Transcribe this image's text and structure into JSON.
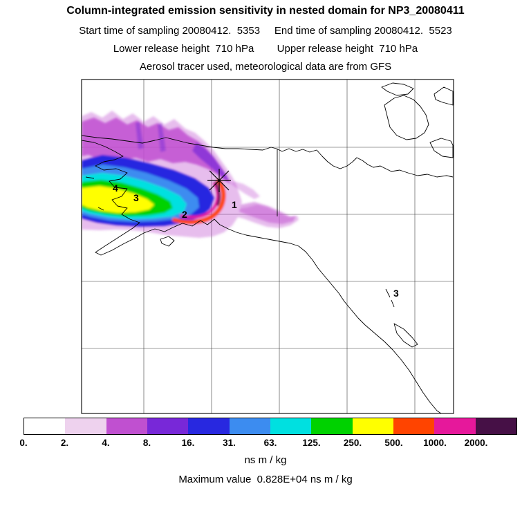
{
  "header": {
    "title": "Column-integrated emission sensitivity in nested domain for NP3_20080411",
    "sampling_line": "Start time of sampling 20080412.  5353     End time of sampling 20080412.  5523",
    "release_line": "Lower release height  710 hPa        Upper release height  710 hPa",
    "tracer_line": "Aerosol tracer used, meteorological data are from GFS"
  },
  "map": {
    "contour_labels": [
      {
        "text": "4"
      },
      {
        "text": "3"
      },
      {
        "text": "2"
      },
      {
        "text": "1"
      },
      {
        "text": "3"
      }
    ],
    "source_marker": "asterisk"
  },
  "colorbar": {
    "ticks": [
      "0.",
      "2.",
      "4.",
      "8.",
      "16.",
      "31.",
      "63.",
      "125.",
      "250.",
      "500.",
      "1000.",
      "2000."
    ],
    "colors": [
      "#ffffff",
      "#eed2ee",
      "#c050d0",
      "#7828d8",
      "#2828e0",
      "#3c8cf0",
      "#00e0e0",
      "#00d200",
      "#ffff00",
      "#ff4400",
      "#e6189b",
      "#461046"
    ],
    "units": "ns m / kg"
  },
  "footer": {
    "max_value_line": "Maximum value  0.828E+04 ns m / kg"
  },
  "chart_data": {
    "type": "heatmap",
    "title": "Column-integrated emission sensitivity in nested domain for NP3_20080411",
    "variable": "column-integrated emission sensitivity",
    "units": "ns m / kg",
    "region": "Alaska / northwestern North America with plume extending west from source marker",
    "levels": [
      0,
      2,
      4,
      8,
      16,
      31,
      63,
      125,
      250,
      500,
      1000,
      2000
    ],
    "level_colors": [
      "#ffffff",
      "#eed2ee",
      "#c050d0",
      "#7828d8",
      "#2828e0",
      "#3c8cf0",
      "#00e0e0",
      "#00d200",
      "#ffff00",
      "#ff4400",
      "#e6189b",
      "#461046"
    ],
    "max_value_text": "0.828E+04",
    "max_value": 8280,
    "receptor": "NP3_20080411",
    "sampling_start": "20080412.  5353",
    "sampling_end": "20080412.  5523",
    "lower_release_hPa": 710,
    "upper_release_hPa": 710,
    "tracer": "Aerosol",
    "meteorology": "GFS",
    "plume_annotation_numbers": [
      "4",
      "3",
      "2",
      "1",
      "3"
    ]
  }
}
